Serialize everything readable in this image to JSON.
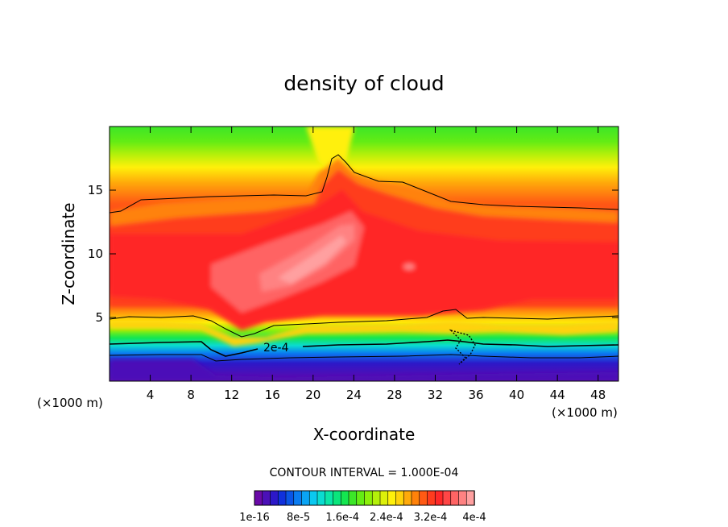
{
  "chart_data": {
    "type": "contour",
    "title": "density of cloud",
    "xlabel": "X-coordinate",
    "ylabel": "Z-coordinate",
    "x_unit_note": "(×1000 m)",
    "x_unit_note_right": "(×1000 m)",
    "xlim": [
      0,
      50
    ],
    "ylim": [
      0,
      20
    ],
    "xticks": [
      4,
      8,
      12,
      16,
      20,
      24,
      28,
      32,
      36,
      40,
      44,
      48
    ],
    "yticks": [
      5,
      10,
      15
    ],
    "contour_interval_label": "CONTOUR INTERVAL = 1.000E-04",
    "contour_label": "2e-4",
    "colorbar": {
      "tick_labels": [
        "1e-16",
        "8e-5",
        "1.6e-4",
        "2.4e-4",
        "3.2e-4",
        "4e-4"
      ],
      "colors": [
        "#6a0aa8",
        "#4b10b8",
        "#2c18c8",
        "#1030dc",
        "#0a55e6",
        "#0a7cf0",
        "#0aa4f4",
        "#0ac8f0",
        "#0adcd0",
        "#0ae6a8",
        "#0ae67c",
        "#14e650",
        "#3ce628",
        "#64ec14",
        "#8cf00a",
        "#b4f00a",
        "#dcf00a",
        "#fff00a",
        "#ffd20a",
        "#ffaa0a",
        "#ff820a",
        "#ff5a14",
        "#ff3c1e",
        "#ff2828",
        "#ff4646",
        "#ff6464",
        "#ff8282",
        "#ffa0a0"
      ]
    },
    "grid": false
  }
}
